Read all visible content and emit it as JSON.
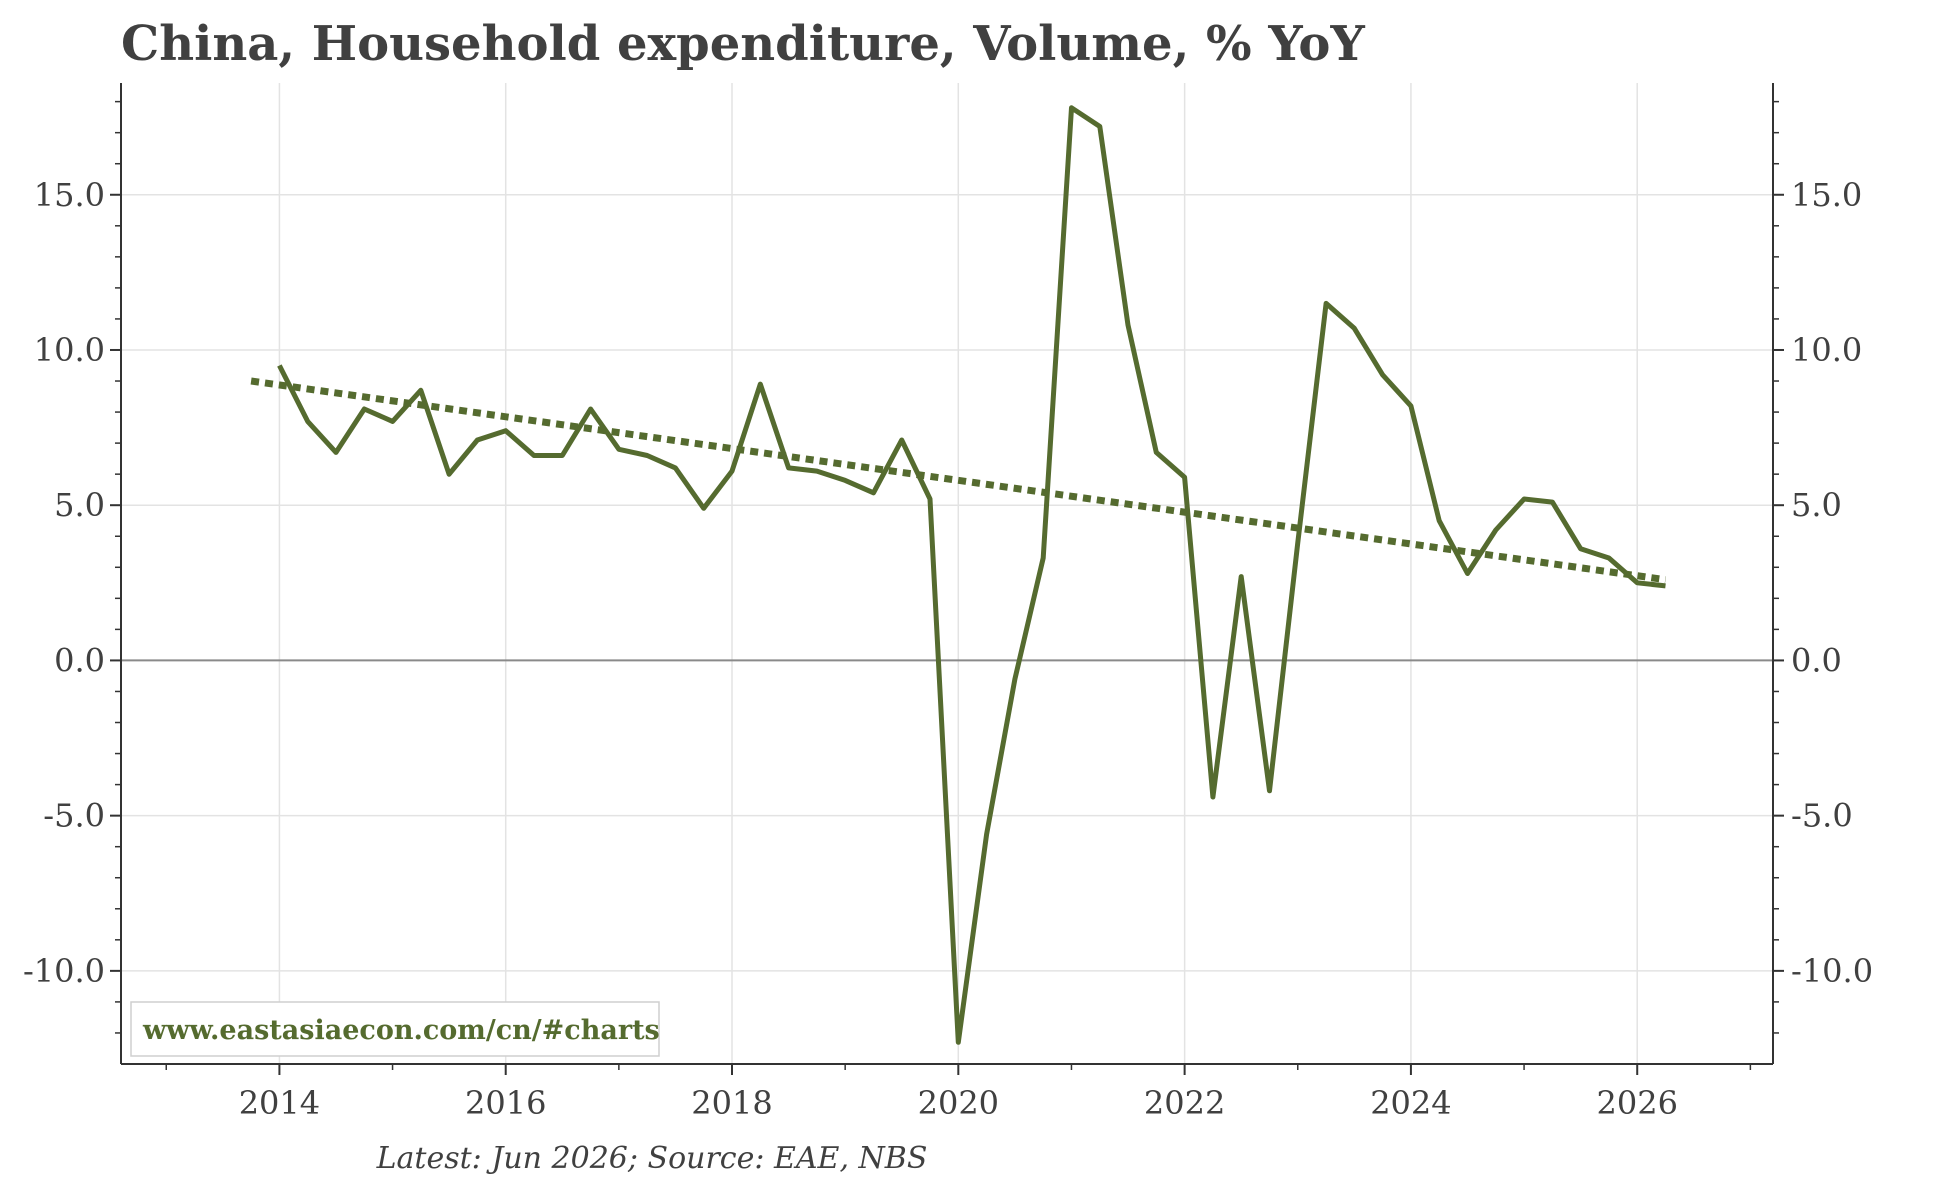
{
  "chart_data": {
    "type": "line",
    "title": "China, Household expenditure, Volume, % YoY",
    "footer": "Latest: Jun 2026; Source: EAE, NBS",
    "watermark": "www.eastasiaecon.com/cn/#charts",
    "xlabel": "",
    "ylabel": "",
    "xlim": [
      2012.6,
      2027.2
    ],
    "ylim": [
      -13.0,
      18.6
    ],
    "x_ticks": [
      2014,
      2016,
      2018,
      2020,
      2022,
      2024,
      2026
    ],
    "y_ticks": [
      -10.0,
      -5.0,
      0.0,
      5.0,
      10.0,
      15.0
    ],
    "y_tick_labels": [
      "-10.0",
      "-5.0",
      "0.0",
      "5.0",
      "10.0",
      "15.0"
    ],
    "grid": true,
    "colors": {
      "series": "#556b2f",
      "grid": "#e3e3e3",
      "zero_line": "#8a8a8a",
      "axis": "#333333",
      "text": "#404040"
    },
    "series": [
      {
        "style": "solid",
        "x": [
          2014.0,
          2014.25,
          2014.5,
          2014.75,
          2015.0,
          2015.25,
          2015.5,
          2015.75,
          2016.0,
          2016.25,
          2016.5,
          2016.75,
          2017.0,
          2017.25,
          2017.5,
          2017.75,
          2018.0,
          2018.25,
          2018.5,
          2018.75,
          2019.0,
          2019.25,
          2019.5,
          2019.75,
          2020.0,
          2020.25,
          2020.5,
          2020.75,
          2021.0,
          2021.25,
          2021.5,
          2021.75,
          2022.0,
          2022.25,
          2022.5,
          2022.75,
          2023.0,
          2023.25,
          2023.5,
          2023.75,
          2024.0,
          2024.25,
          2024.5,
          2024.75,
          2025.0,
          2025.25,
          2025.5,
          2025.75,
          2026.0,
          2026.25
        ],
        "values": [
          9.5,
          7.7,
          6.7,
          8.1,
          7.7,
          8.7,
          6.0,
          7.1,
          7.4,
          6.6,
          6.6,
          8.1,
          6.8,
          6.6,
          6.2,
          4.9,
          6.1,
          8.9,
          6.2,
          6.1,
          5.8,
          5.4,
          7.1,
          5.2,
          -12.3,
          -5.6,
          -0.6,
          3.3,
          17.8,
          17.2,
          10.8,
          6.7,
          5.9,
          -4.4,
          2.7,
          -4.2,
          3.8,
          11.5,
          10.7,
          9.2,
          8.2,
          4.5,
          2.8,
          4.2,
          5.2,
          5.1,
          3.6,
          3.3,
          2.5,
          2.4
        ]
      },
      {
        "style": "dotted",
        "x": [
          2013.75,
          2026.25
        ],
        "values": [
          9.0,
          2.6
        ]
      }
    ]
  }
}
